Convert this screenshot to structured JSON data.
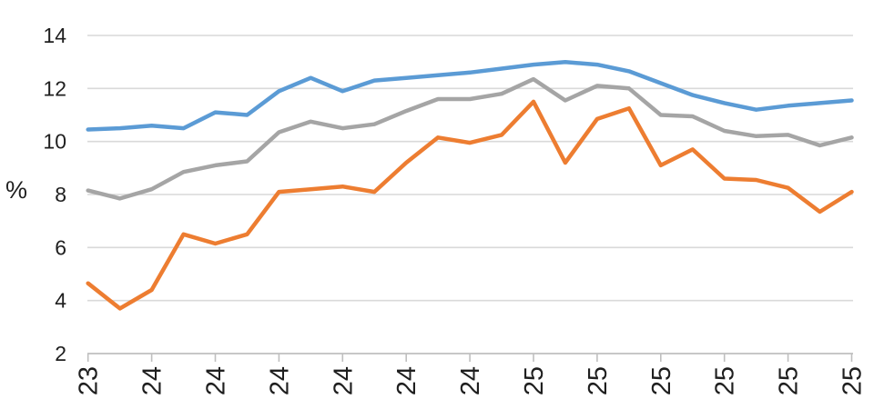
{
  "chart_data": {
    "type": "line",
    "title": "",
    "ylabel": "%",
    "xlabel": "",
    "ylim": [
      2,
      14
    ],
    "yticks": [
      14,
      12,
      10,
      8,
      6,
      4,
      2
    ],
    "ytick_labels": [
      "14",
      "12",
      "10",
      "8",
      "6",
      "4",
      "2"
    ],
    "xtick_labels": [
      "23",
      "24",
      "24",
      "24",
      "24",
      "24",
      "24",
      "25",
      "25",
      "25",
      "25",
      "25",
      "25"
    ],
    "points_per_series": 25,
    "xticks_every_n_points": 2,
    "grid": true,
    "legend_position": "none",
    "series": [
      {
        "name": "blue",
        "color": "#5B9BD5",
        "values": [
          10.45,
          10.5,
          10.6,
          10.5,
          11.1,
          11.0,
          11.9,
          12.4,
          11.9,
          12.3,
          12.4,
          12.5,
          12.6,
          12.75,
          12.9,
          13.0,
          12.9,
          12.65,
          12.2,
          11.75,
          11.45,
          11.2,
          11.35,
          11.45,
          11.55
        ]
      },
      {
        "name": "gray",
        "color": "#A5A5A5",
        "values": [
          8.15,
          7.85,
          8.2,
          8.85,
          9.1,
          9.25,
          10.35,
          10.75,
          10.5,
          10.65,
          11.15,
          11.6,
          11.6,
          11.8,
          12.35,
          11.55,
          12.1,
          12.0,
          11.0,
          10.95,
          10.4,
          10.2,
          10.25,
          9.85,
          10.15
        ]
      },
      {
        "name": "orange",
        "color": "#ED7D31",
        "values": [
          4.65,
          3.7,
          4.4,
          6.5,
          6.15,
          6.5,
          8.1,
          8.2,
          8.3,
          8.1,
          9.2,
          10.15,
          9.95,
          10.25,
          11.5,
          9.2,
          10.85,
          11.25,
          9.1,
          9.7,
          8.6,
          8.55,
          8.25,
          7.35,
          8.1
        ]
      }
    ],
    "colors": {
      "gridline": "#D9D9D9",
      "axis": "#BFBFBF",
      "text": "#1F1F1F"
    }
  }
}
